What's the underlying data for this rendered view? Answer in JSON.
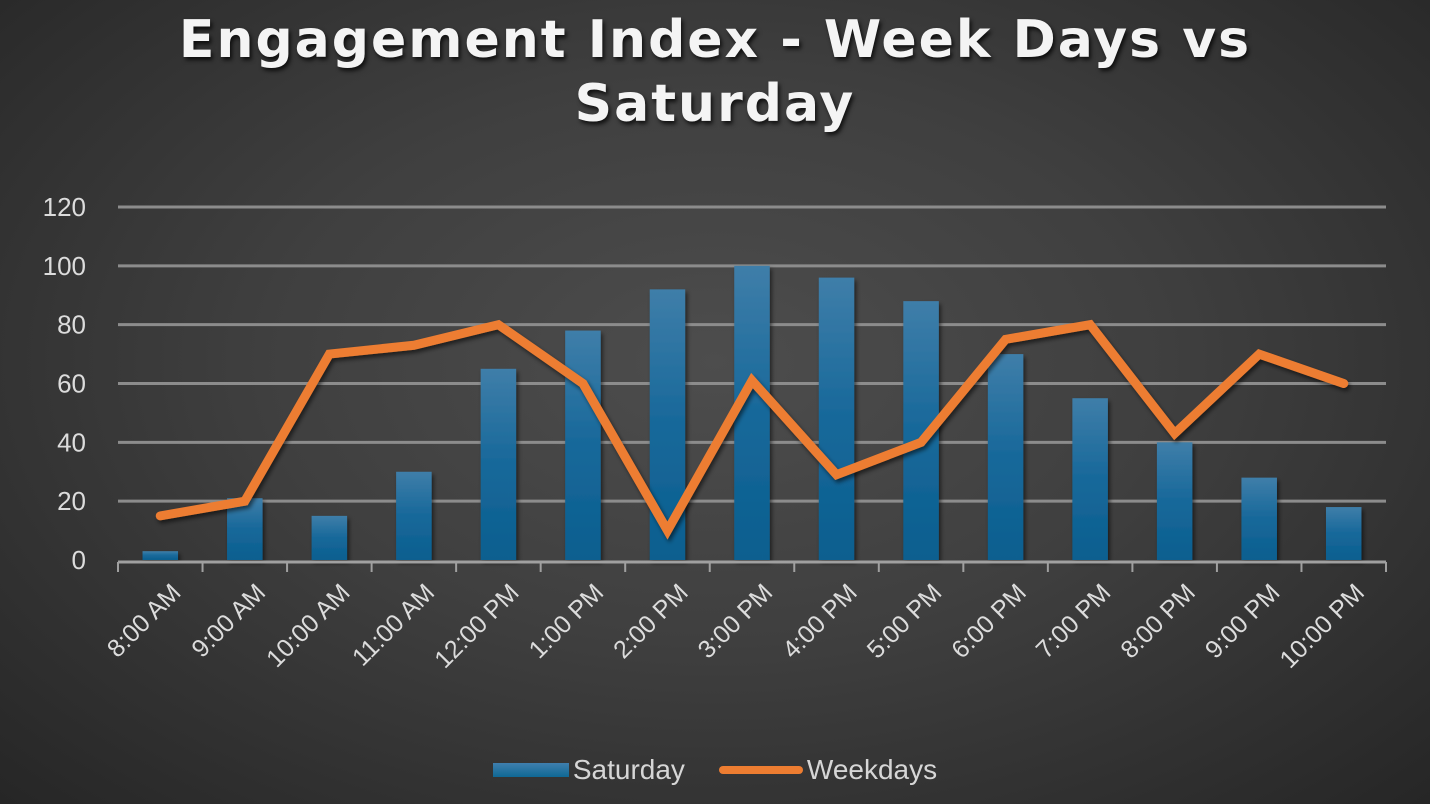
{
  "chart_data": {
    "type": "bar+line",
    "title": "Engagement Index - Week Days vs Saturday",
    "title_lines": [
      "Engagement Index - Week Days vs",
      "Saturday"
    ],
    "xlabel": "",
    "ylabel": "",
    "ylim": [
      0,
      120
    ],
    "yticks": [
      0,
      20,
      40,
      60,
      80,
      100,
      120
    ],
    "grid": true,
    "legend_position": "bottom",
    "categories": [
      "8:00 AM",
      "9:00 AM",
      "10:00 AM",
      "11:00 AM",
      "12:00 PM",
      "1:00 PM",
      "2:00 PM",
      "3:00 PM",
      "4:00 PM",
      "5:00 PM",
      "6:00 PM",
      "7:00 PM",
      "8:00 PM",
      "9:00 PM",
      "10:00 PM"
    ],
    "series": [
      {
        "name": "Saturday",
        "type": "bar",
        "color": "#1f6f9c",
        "values": [
          3,
          21,
          15,
          30,
          65,
          78,
          92,
          100,
          96,
          88,
          70,
          55,
          40,
          28,
          18
        ]
      },
      {
        "name": "Weekdays",
        "type": "line",
        "color": "#ed7d31",
        "values": [
          15,
          20,
          70,
          73,
          80,
          60,
          10,
          61,
          29,
          40,
          75,
          80,
          43,
          70,
          60
        ]
      }
    ]
  },
  "legend": {
    "saturday_label": "Saturday",
    "weekdays_label": "Weekdays"
  },
  "colors": {
    "bar": "#1f6f9c",
    "line": "#ed7d31",
    "grid": "#8c8c8c",
    "text": "#d9d9d9"
  }
}
